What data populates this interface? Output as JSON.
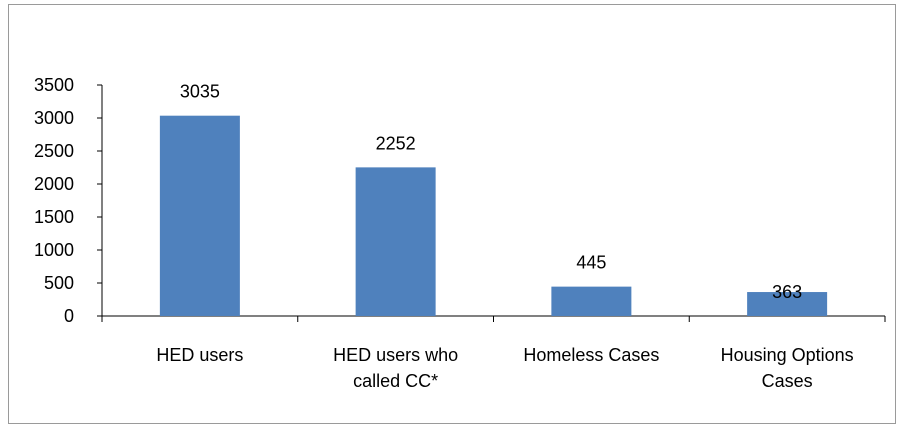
{
  "chart_data": {
    "type": "bar",
    "categories": [
      [
        "HED users"
      ],
      [
        "HED  users who",
        "called CC*"
      ],
      [
        "Homeless Cases"
      ],
      [
        "Housing Options",
        "Cases"
      ]
    ],
    "values": [
      3035,
      2252,
      445,
      363
    ],
    "data_labels": [
      "3035",
      "2252",
      "445",
      "363"
    ],
    "y_ticks": [
      "0",
      "500",
      "1000",
      "1500",
      "2000",
      "2500",
      "3000",
      "3500"
    ],
    "ylim": [
      0,
      3500
    ],
    "title": "",
    "xlabel": "",
    "ylabel": "",
    "grid": false,
    "legend": "none",
    "bar_color": "#4f81bd",
    "axis_color": "#000000"
  }
}
